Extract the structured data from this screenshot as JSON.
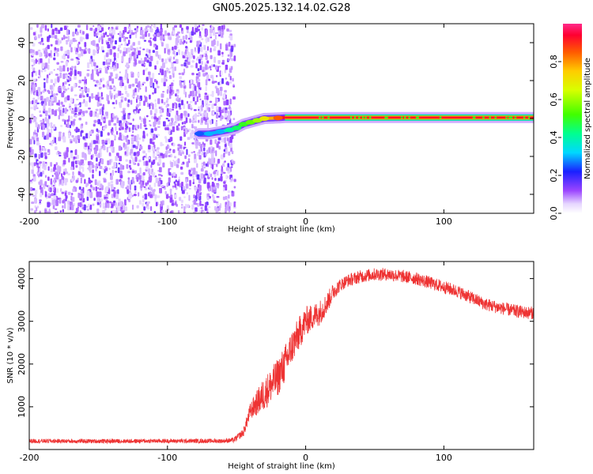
{
  "title": "GN05.2025.132.14.02.G28",
  "chart_data": [
    {
      "type": "heatmap",
      "xlabel": "Height of straight line (km)",
      "ylabel": "Frequency (Hz)",
      "xlim": [
        -200,
        165
      ],
      "ylim": [
        -50,
        50
      ],
      "xticks": [
        -200,
        -100,
        0,
        100
      ],
      "xtick_labels": [
        "-200",
        "-100",
        "0",
        "100"
      ],
      "yticks": [
        -40,
        -20,
        0,
        20,
        40
      ],
      "ytick_labels": [
        "-40",
        "-20",
        "0",
        "20",
        "40"
      ],
      "colorbar": {
        "label": "Normalized spectral amplitude",
        "range": [
          0,
          1
        ],
        "ticks": [
          0.0,
          0.2,
          0.4,
          0.6,
          0.8
        ],
        "tick_labels": [
          "0.0",
          "0.2",
          "0.4",
          "0.6",
          "0.8"
        ],
        "colormap": "rainbow"
      },
      "noise_region_x": [
        -200,
        -52
      ],
      "signal_track": [
        {
          "x": -77,
          "y": -8,
          "a": 0.25
        },
        {
          "x": -70,
          "y": -8,
          "a": 0.3
        },
        {
          "x": -62,
          "y": -7,
          "a": 0.3
        },
        {
          "x": -55,
          "y": -6,
          "a": 0.4
        },
        {
          "x": -50,
          "y": -5,
          "a": 0.45
        },
        {
          "x": -45,
          "y": -3,
          "a": 0.5
        },
        {
          "x": -40,
          "y": -2,
          "a": 0.55
        },
        {
          "x": -35,
          "y": -1,
          "a": 0.6
        },
        {
          "x": -30,
          "y": 0,
          "a": 0.7
        },
        {
          "x": -20,
          "y": 0.3,
          "a": 0.85
        },
        {
          "x": -15,
          "y": 0.5,
          "a": 1.0
        },
        {
          "x": 165,
          "y": 0.5,
          "a": 1.0
        }
      ]
    },
    {
      "type": "line",
      "xlabel": "Height of straight line (km)",
      "ylabel": "SNR (10 * v/v)",
      "xlim": [
        -200,
        165
      ],
      "ylim": [
        0,
        4400
      ],
      "xticks": [
        -200,
        -100,
        0,
        100
      ],
      "xtick_labels": [
        "-200",
        "-100",
        "0",
        "100"
      ],
      "yticks": [
        1000,
        2000,
        3000,
        4000
      ],
      "ytick_labels": [
        "1000",
        "2000",
        "3000",
        "4000"
      ],
      "series": [
        {
          "color": "#ee3333",
          "x": [
            -200,
            -150,
            -100,
            -60,
            -52,
            -45,
            -40,
            -35,
            -30,
            -25,
            -20,
            -15,
            -10,
            -5,
            0,
            5,
            10,
            15,
            20,
            25,
            30,
            40,
            50,
            60,
            70,
            80,
            90,
            100,
            110,
            120,
            130,
            140,
            150,
            160,
            165
          ],
          "y": [
            200,
            195,
            200,
            200,
            220,
            400,
            900,
            1100,
            1300,
            1500,
            1700,
            2000,
            2400,
            2700,
            3000,
            3100,
            3200,
            3400,
            3700,
            3850,
            3950,
            4050,
            4100,
            4100,
            4050,
            4000,
            3900,
            3800,
            3700,
            3550,
            3400,
            3320,
            3250,
            3200,
            3200
          ],
          "noise": [
            50,
            50,
            50,
            50,
            60,
            100,
            200,
            300,
            400,
            400,
            450,
            450,
            400,
            400,
            350,
            300,
            300,
            250,
            200,
            150,
            150,
            150,
            150,
            150,
            150,
            150,
            150,
            150,
            150,
            150,
            150,
            150,
            150,
            150,
            150
          ]
        }
      ]
    }
  ]
}
